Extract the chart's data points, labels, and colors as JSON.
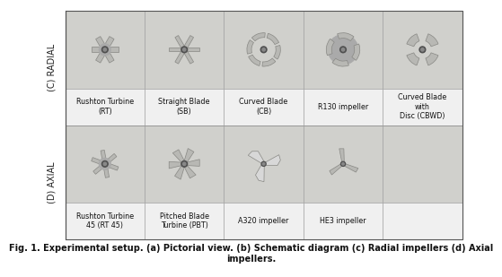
{
  "title": "Fig. 1. Experimental setup. (a) Pictorial view. (b) Schematic diagram (c) Radial impellers (d) Axial\nimpellers.",
  "title_fontsize": 7.0,
  "background_color": "#ffffff",
  "border_color": "#888888",
  "row_labels": [
    "(C) RADIAL",
    "(D) AXIAL"
  ],
  "radial_labels": [
    "Rushton Turbine\n(RT)",
    "Straight Blade\n(SB)",
    "Curved Blade\n(CB)",
    "R130 impeller",
    "Curved Blade\nwith\nDisc (CBWD)"
  ],
  "axial_labels": [
    "Rushton Turbine\n45 (RT 45)",
    "Pitched Blade\nTurbine (PBT)",
    "A320 impeller",
    "HE3 impeller",
    ""
  ],
  "cell_bg": "#c8c8c8",
  "label_fontsize": 5.8,
  "row_label_fontsize": 7.0,
  "grid_color": "#999999",
  "blade_color": "#b8b8b4",
  "blade_edge": "#888884",
  "hub_color": "#606060",
  "shadow_color": "#909090"
}
